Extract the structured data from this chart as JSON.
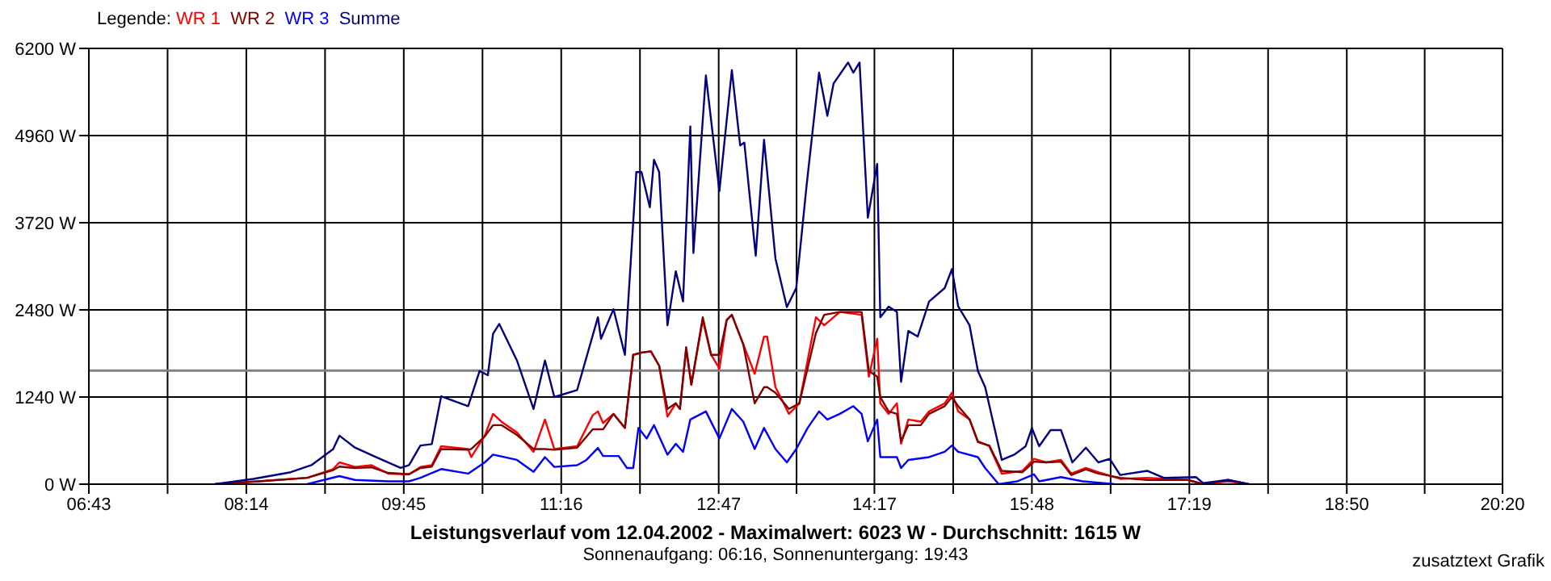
{
  "chart_data": {
    "type": "line",
    "title": "Leistungsverlauf vom 12.04.2002 - Maximalwert: 6023 W - Durchschnitt: 1615 W",
    "subtitle": "Sonnenaufgang: 06:16, Sonnenuntergang: 19:43",
    "annotations": [
      "zusatztext Grafik"
    ],
    "legend_title": "Legende:",
    "legend": "top left",
    "grid": true,
    "marker": "none",
    "line_style": "solid",
    "xlim": [
      6.7167,
      20.3333
    ],
    "xticks": [
      {
        "value": 6.7167,
        "label": "06:43"
      },
      {
        "value": 7.475,
        "label": null
      },
      {
        "value": 8.2333,
        "label": "08:14"
      },
      {
        "value": 8.9917,
        "label": null
      },
      {
        "value": 9.75,
        "label": "09:45"
      },
      {
        "value": 10.5083,
        "label": null
      },
      {
        "value": 11.2667,
        "label": "11:16"
      },
      {
        "value": 12.025,
        "label": null
      },
      {
        "value": 12.7833,
        "label": "12:47"
      },
      {
        "value": 13.5333,
        "label": null
      },
      {
        "value": 14.2833,
        "label": "14:17"
      },
      {
        "value": 15.0417,
        "label": null
      },
      {
        "value": 15.8,
        "label": "15:48"
      },
      {
        "value": 16.5583,
        "label": null
      },
      {
        "value": 17.3167,
        "label": "17:19"
      },
      {
        "value": 18.075,
        "label": null
      },
      {
        "value": 18.8333,
        "label": "18:50"
      },
      {
        "value": 19.5833,
        "label": null
      },
      {
        "value": 20.3333,
        "label": "20:20"
      }
    ],
    "ylim": [
      0,
      6200
    ],
    "yticks": [
      {
        "value": 0,
        "label": "0 W"
      },
      {
        "value": 1240,
        "label": "1240 W"
      },
      {
        "value": 2480,
        "label": "2480 W"
      },
      {
        "value": 3720,
        "label": "3720 W"
      },
      {
        "value": 4960,
        "label": "4960 W"
      },
      {
        "value": 6200,
        "label": "6200 W"
      }
    ],
    "ref_lines": [
      {
        "axis": "y",
        "value": 1615,
        "color": "#808080"
      }
    ],
    "series": [
      {
        "name": "WR 1",
        "color": "#ff0000",
        "x": [
          7.93,
          8.35,
          8.82,
          9.07,
          9.13,
          9.28,
          9.44,
          9.6,
          9.8,
          9.91,
          10.02,
          10.11,
          10.37,
          10.4,
          10.53,
          10.61,
          10.69,
          10.84,
          11.0,
          11.11,
          11.2,
          11.42,
          11.57,
          11.62,
          11.67,
          11.77,
          11.88,
          11.96,
          12.05,
          12.13,
          12.21,
          12.29,
          12.37,
          12.41,
          12.47,
          12.52,
          12.63,
          12.71,
          12.79,
          12.86,
          12.91,
          13.02,
          13.13,
          13.22,
          13.25,
          13.33,
          13.46,
          13.56,
          13.72,
          13.8,
          13.95,
          14.16,
          14.23,
          14.31,
          14.34,
          14.42,
          14.5,
          14.54,
          14.61,
          14.73,
          14.81,
          14.96,
          15.03,
          15.09,
          15.2,
          15.28,
          15.39,
          15.51,
          15.71,
          15.82,
          15.94,
          16.08,
          16.18,
          16.32,
          16.44,
          16.65,
          16.91,
          17.3,
          17.45,
          17.69,
          17.89
        ],
        "values": [
          0,
          40,
          90,
          215,
          310,
          245,
          270,
          150,
          140,
          245,
          270,
          540,
          500,
          385,
          690,
          1000,
          890,
          735,
          460,
          920,
          500,
          540,
          980,
          1035,
          870,
          1000,
          800,
          1840,
          1875,
          1890,
          1685,
          960,
          1150,
          1070,
          1915,
          1415,
          2335,
          1840,
          1645,
          2335,
          2410,
          1990,
          1570,
          2100,
          2100,
          1380,
          1000,
          1150,
          2375,
          2260,
          2450,
          2410,
          1530,
          2070,
          1150,
          1000,
          1150,
          575,
          920,
          890,
          1035,
          1150,
          1300,
          1035,
          920,
          610,
          540,
          150,
          190,
          360,
          310,
          345,
          150,
          230,
          170,
          75,
          90,
          60,
          0,
          40,
          0
        ]
      },
      {
        "name": "WR 2",
        "color": "#800000",
        "x": [
          7.93,
          8.35,
          8.82,
          9.07,
          9.13,
          9.28,
          9.44,
          9.6,
          9.8,
          9.91,
          10.02,
          10.11,
          10.37,
          10.4,
          10.53,
          10.61,
          10.69,
          10.84,
          11.0,
          11.11,
          11.2,
          11.42,
          11.57,
          11.62,
          11.67,
          11.77,
          11.88,
          11.96,
          12.05,
          12.13,
          12.21,
          12.29,
          12.37,
          12.41,
          12.47,
          12.52,
          12.63,
          12.71,
          12.79,
          12.86,
          12.91,
          13.02,
          13.13,
          13.22,
          13.25,
          13.33,
          13.46,
          13.56,
          13.72,
          13.8,
          13.95,
          14.16,
          14.23,
          14.31,
          14.34,
          14.42,
          14.5,
          14.54,
          14.61,
          14.73,
          14.81,
          14.96,
          15.03,
          15.09,
          15.2,
          15.28,
          15.39,
          15.51,
          15.71,
          15.82,
          15.94,
          16.08,
          16.18,
          16.32,
          16.44,
          16.65,
          16.91,
          17.3,
          17.45,
          17.69,
          17.89
        ],
        "values": [
          0,
          40,
          90,
          200,
          250,
          230,
          240,
          160,
          140,
          230,
          250,
          500,
          490,
          500,
          680,
          840,
          840,
          700,
          500,
          500,
          490,
          520,
          780,
          780,
          780,
          1000,
          800,
          1840,
          1875,
          1890,
          1685,
          1070,
          1150,
          1070,
          1950,
          1415,
          2375,
          1840,
          1840,
          2335,
          2410,
          1990,
          1150,
          1380,
          1380,
          1300,
          1070,
          1150,
          2150,
          2410,
          2450,
          2450,
          1610,
          1530,
          1240,
          1035,
          1000,
          610,
          840,
          840,
          1000,
          1110,
          1240,
          1110,
          920,
          600,
          550,
          190,
          170,
          320,
          310,
          320,
          130,
          210,
          150,
          90,
          60,
          60,
          0,
          60,
          0
        ]
      },
      {
        "name": "WR 3",
        "color": "#0000ff",
        "x": [
          8.82,
          9.02,
          9.13,
          9.28,
          9.6,
          9.8,
          9.91,
          10.11,
          10.37,
          10.53,
          10.61,
          10.84,
          11.0,
          11.11,
          11.2,
          11.42,
          11.51,
          11.62,
          11.67,
          11.82,
          11.9,
          11.96,
          12.01,
          12.09,
          12.16,
          12.29,
          12.37,
          12.44,
          12.51,
          12.66,
          12.79,
          12.91,
          13.02,
          13.13,
          13.22,
          13.33,
          13.44,
          13.53,
          13.64,
          13.75,
          13.83,
          13.95,
          14.08,
          14.16,
          14.22,
          14.31,
          14.34,
          14.5,
          14.54,
          14.61,
          14.81,
          14.96,
          15.03,
          15.09,
          15.28,
          15.35,
          15.48,
          15.66,
          15.82,
          15.87,
          16.08,
          16.29,
          16.6
        ],
        "values": [
          0,
          75,
          115,
          60,
          40,
          40,
          90,
          215,
          150,
          310,
          420,
          345,
          175,
          385,
          245,
          270,
          345,
          515,
          400,
          400,
          230,
          230,
          800,
          650,
          840,
          420,
          575,
          460,
          920,
          1035,
          650,
          1070,
          890,
          500,
          800,
          500,
          310,
          500,
          800,
          1035,
          920,
          1000,
          1110,
          1000,
          610,
          920,
          385,
          385,
          230,
          345,
          385,
          460,
          550,
          460,
          385,
          230,
          0,
          40,
          140,
          40,
          100,
          40,
          0
        ]
      },
      {
        "name": "Summe",
        "color": "#000080",
        "x": [
          7.93,
          8.3,
          8.66,
          8.86,
          9.07,
          9.13,
          9.28,
          9.49,
          9.72,
          9.8,
          9.91,
          10.02,
          10.11,
          10.37,
          10.48,
          10.56,
          10.61,
          10.67,
          10.84,
          11.0,
          11.11,
          11.2,
          11.42,
          11.62,
          11.65,
          11.77,
          11.88,
          11.99,
          12.04,
          12.12,
          12.16,
          12.21,
          12.29,
          12.37,
          12.44,
          12.51,
          12.54,
          12.66,
          12.79,
          12.91,
          12.99,
          13.03,
          13.14,
          13.22,
          13.33,
          13.44,
          13.53,
          13.63,
          13.75,
          13.83,
          13.89,
          14.03,
          14.08,
          14.14,
          14.22,
          14.31,
          14.34,
          14.42,
          14.5,
          14.54,
          14.61,
          14.7,
          14.81,
          14.96,
          15.03,
          15.09,
          15.2,
          15.28,
          15.35,
          15.51,
          15.63,
          15.74,
          15.8,
          15.87,
          15.98,
          16.08,
          16.19,
          16.32,
          16.44,
          16.55,
          16.65,
          16.91,
          17.07,
          17.38,
          17.45,
          17.69,
          17.89
        ],
        "values": [
          0,
          75,
          170,
          270,
          500,
          690,
          520,
          380,
          230,
          270,
          550,
          570,
          1250,
          1110,
          1610,
          1550,
          2140,
          2280,
          1760,
          1070,
          1760,
          1240,
          1340,
          2375,
          2070,
          2490,
          1840,
          4440,
          4440,
          3940,
          4615,
          4440,
          2260,
          3030,
          2600,
          5090,
          3290,
          5815,
          4170,
          5890,
          4820,
          4860,
          3250,
          4900,
          3210,
          2520,
          2790,
          4250,
          5855,
          5240,
          5700,
          6000,
          5855,
          6000,
          3790,
          4555,
          2375,
          2525,
          2450,
          1455,
          2180,
          2100,
          2600,
          2790,
          3060,
          2530,
          2260,
          1610,
          1380,
          345,
          420,
          540,
          800,
          540,
          770,
          770,
          310,
          520,
          310,
          360,
          130,
          190,
          90,
          100,
          15,
          60,
          0
        ]
      }
    ]
  }
}
